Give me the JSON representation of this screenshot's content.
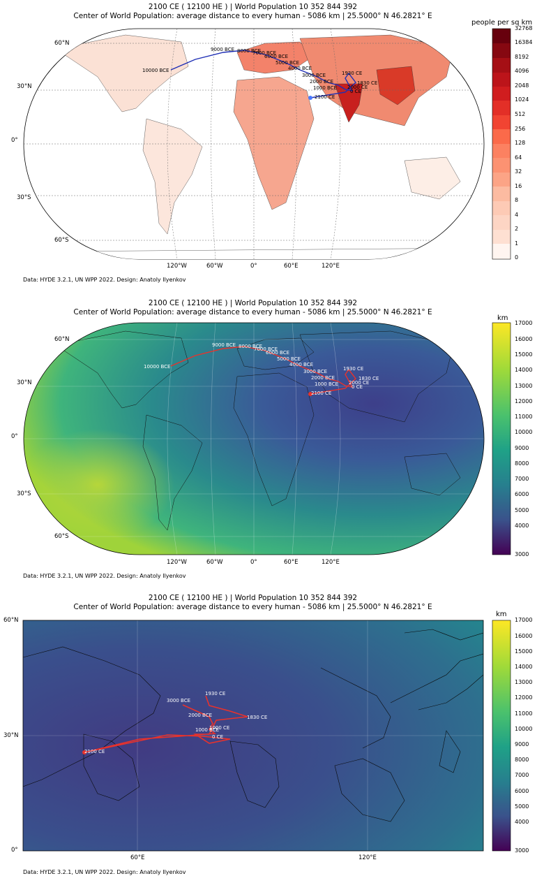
{
  "panels": [
    {
      "title_line1": "2100 CE ( 12100 HE ) | World Population 10 352 844 392",
      "title_line2": "Center of World Population: average distance to every human - 5086 km | 25.5000° N  46.2821° E",
      "credit": "Data: HYDE 3.2.1, UN WPP 2022. Design: Anatoly Ilyenkov",
      "colorbar_title": "people per sq km",
      "colorbar_ticks": [
        "32768",
        "16384",
        "8192",
        "4096",
        "2048",
        "1024",
        "512",
        "256",
        "128",
        "64",
        "32",
        "16",
        "8",
        "4",
        "2",
        "1",
        "0"
      ],
      "lat_labels": [
        "60°N",
        "30°N",
        "0°",
        "30°S",
        "60°S"
      ],
      "lon_labels": [
        "120°W",
        "60°W",
        "0°",
        "60°E",
        "120°E"
      ]
    },
    {
      "title_line1": "2100 CE ( 12100 HE ) | World Population 10 352 844 392",
      "title_line2": "Center of World Population: average distance to every human - 5086 km | 25.5000° N  46.2821° E",
      "credit": "Data: HYDE 3.2.1, UN WPP 2022. Design: Anatoly Ilyenkov",
      "colorbar_title": "km",
      "colorbar_ticks": [
        "17000",
        "16000",
        "15000",
        "14000",
        "13000",
        "12000",
        "11000",
        "10000",
        "9000",
        "8000",
        "7000",
        "6000",
        "5000",
        "4000",
        "3000"
      ],
      "lat_labels": [
        "60°N",
        "30°N",
        "0°",
        "30°S",
        "60°S"
      ],
      "lon_labels": [
        "120°W",
        "60°W",
        "0°",
        "60°E",
        "120°E"
      ]
    },
    {
      "title_line1": "2100 CE ( 12100 HE ) | World Population 10 352 844 392",
      "title_line2": "Center of World Population: average distance to every human - 5086 km | 25.5000° N  46.2821° E",
      "credit": "Data: HYDE 3.2.1, UN WPP 2022. Design: Anatoly Ilyenkov",
      "colorbar_title": "km",
      "colorbar_ticks": [
        "17000",
        "16000",
        "15000",
        "14000",
        "13000",
        "12000",
        "11000",
        "10000",
        "9000",
        "8000",
        "7000",
        "6000",
        "5000",
        "4000",
        "3000"
      ],
      "lat_labels": [
        "60°N",
        "30°N",
        "0°"
      ],
      "lon_labels": [
        "60°E",
        "120°E"
      ]
    }
  ],
  "path_labels": [
    "10000 BCE",
    "9000 BCE",
    "8000 BCE",
    "7000 BCE",
    "6000 BCE",
    "5000 BCE",
    "4000 BCE",
    "3000 BCE",
    "2000 BCE",
    "1000 BCE",
    "0 CE",
    "1000 CE",
    "1830 CE",
    "1930 CE",
    "2000 CE",
    "2100 CE"
  ],
  "zoom_labels": [
    "1930 CE",
    "3000 BCE",
    "2000 BCE",
    "1830 CE",
    "1000 BCE",
    "1000 CE",
    "0 CE",
    "2100 CE"
  ],
  "colors": {
    "path_world": "#1f2fb5",
    "path_distance": "#e8322c",
    "density_high": "#67000d",
    "density_low": "#fff5f0"
  }
}
